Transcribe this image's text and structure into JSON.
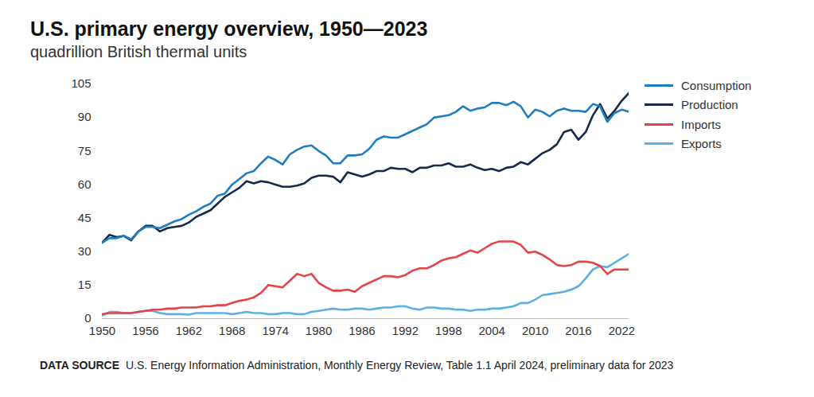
{
  "chart_data": {
    "type": "line",
    "title": "U.S. primary energy overview, 1950—2023",
    "subtitle": "quadrillion British thermal units",
    "caption_label": "DATA SOURCE",
    "caption": "U.S. Energy Information Administration, Monthly Energy Review, Table 1.1 April 2024, preliminary data for 2023",
    "x": [
      1950,
      1951,
      1952,
      1953,
      1954,
      1955,
      1956,
      1957,
      1958,
      1959,
      1960,
      1961,
      1962,
      1963,
      1964,
      1965,
      1966,
      1967,
      1968,
      1969,
      1970,
      1971,
      1972,
      1973,
      1974,
      1975,
      1976,
      1977,
      1978,
      1979,
      1980,
      1981,
      1982,
      1983,
      1984,
      1985,
      1986,
      1987,
      1988,
      1989,
      1990,
      1991,
      1992,
      1993,
      1994,
      1995,
      1996,
      1997,
      1998,
      1999,
      2000,
      2001,
      2002,
      2003,
      2004,
      2005,
      2006,
      2007,
      2008,
      2009,
      2010,
      2011,
      2012,
      2013,
      2014,
      2015,
      2016,
      2017,
      2018,
      2019,
      2020,
      2021,
      2022,
      2023
    ],
    "series": [
      {
        "name": "Consumption",
        "color": "#1f7ec2",
        "values": [
          34,
          36,
          36,
          37,
          35.5,
          39,
          41,
          41,
          40.5,
          42,
          43.5,
          44.5,
          46.5,
          48,
          50,
          51.5,
          55,
          56,
          60,
          62.5,
          65,
          66,
          69.5,
          72.5,
          71,
          69,
          73.5,
          75.5,
          77,
          77.5,
          75,
          73,
          69.5,
          69.5,
          73,
          73,
          73.5,
          76,
          80,
          81.5,
          81,
          81,
          82.5,
          84,
          85.5,
          87,
          90,
          90.5,
          91,
          92.5,
          95,
          93,
          94,
          94.5,
          96.5,
          96.5,
          95.5,
          97,
          95,
          90,
          93.5,
          92.5,
          90.5,
          93,
          94,
          93,
          93,
          92.5,
          96,
          95,
          88,
          92,
          93.5,
          92.5
        ]
      },
      {
        "name": "Production",
        "color": "#162a4a",
        "values": [
          34,
          37.5,
          36.5,
          37,
          35,
          39,
          41.5,
          41.5,
          39,
          40.5,
          41,
          41.5,
          43,
          45.5,
          47,
          48.5,
          51.5,
          54.5,
          56.5,
          58.5,
          61.5,
          60.5,
          61.5,
          61,
          60,
          59,
          59,
          59.5,
          60.5,
          63,
          64,
          64,
          63.5,
          61,
          65.5,
          64.5,
          63.5,
          64.5,
          66,
          66,
          67.5,
          67,
          67,
          65.5,
          67.5,
          67.5,
          68.5,
          68.5,
          69.5,
          68,
          68,
          69,
          67.5,
          66.5,
          67,
          66,
          67.5,
          68,
          70,
          69,
          71.5,
          74,
          75.5,
          78,
          83.5,
          84.5,
          80,
          83.5,
          91,
          96,
          89.5,
          93,
          97.5,
          101
        ]
      },
      {
        "name": "Imports",
        "color": "#e5424a",
        "values": [
          2,
          2.5,
          2.5,
          2.5,
          2.5,
          3,
          3.5,
          4,
          4,
          4.5,
          4.5,
          5,
          5,
          5,
          5.5,
          5.5,
          6,
          6,
          7,
          8,
          8.5,
          9.5,
          11.5,
          15,
          14.5,
          14,
          17,
          20,
          19,
          20,
          16,
          14,
          12.5,
          12.5,
          13,
          12,
          14.5,
          16,
          17.5,
          19,
          19,
          18.5,
          19.5,
          21.5,
          22.5,
          22.5,
          24,
          26,
          27,
          27.5,
          29,
          30.5,
          29.5,
          31.5,
          33.5,
          34.5,
          34.5,
          34.5,
          33,
          29.5,
          30,
          28.5,
          26.5,
          24,
          23.5,
          24,
          25.5,
          25.5,
          25,
          23.5,
          20,
          22,
          22,
          22
        ]
      },
      {
        "name": "Exports",
        "color": "#5ab0e4",
        "values": [
          1.5,
          3,
          3,
          2.5,
          2.5,
          3,
          3.5,
          3.5,
          2.5,
          2,
          2,
          2,
          1.8,
          2.5,
          2.5,
          2.5,
          2.5,
          2.5,
          2,
          2.5,
          3,
          2.5,
          2.5,
          2,
          2,
          2.5,
          2.5,
          2,
          2,
          3,
          3.5,
          4,
          4.5,
          4,
          4,
          4.5,
          4.5,
          4,
          4.5,
          5,
          5,
          5.5,
          5.5,
          4.5,
          4,
          5,
          5,
          4.5,
          4.5,
          4,
          4,
          3.5,
          4,
          4,
          4.5,
          4.5,
          5,
          5.5,
          7,
          7,
          8.5,
          10.5,
          11,
          11.5,
          12,
          13,
          14.5,
          18,
          22,
          23.5,
          23,
          25,
          27,
          29
        ]
      }
    ],
    "xlim": [
      1950,
      2023
    ],
    "xticks": [
      1950,
      1956,
      1962,
      1968,
      1974,
      1980,
      1986,
      1992,
      1998,
      2004,
      2010,
      2016,
      2022
    ],
    "ylim": [
      0,
      105
    ],
    "yticks": [
      0,
      15,
      30,
      45,
      60,
      75,
      90,
      105
    ],
    "grid": false,
    "legend": "right"
  }
}
